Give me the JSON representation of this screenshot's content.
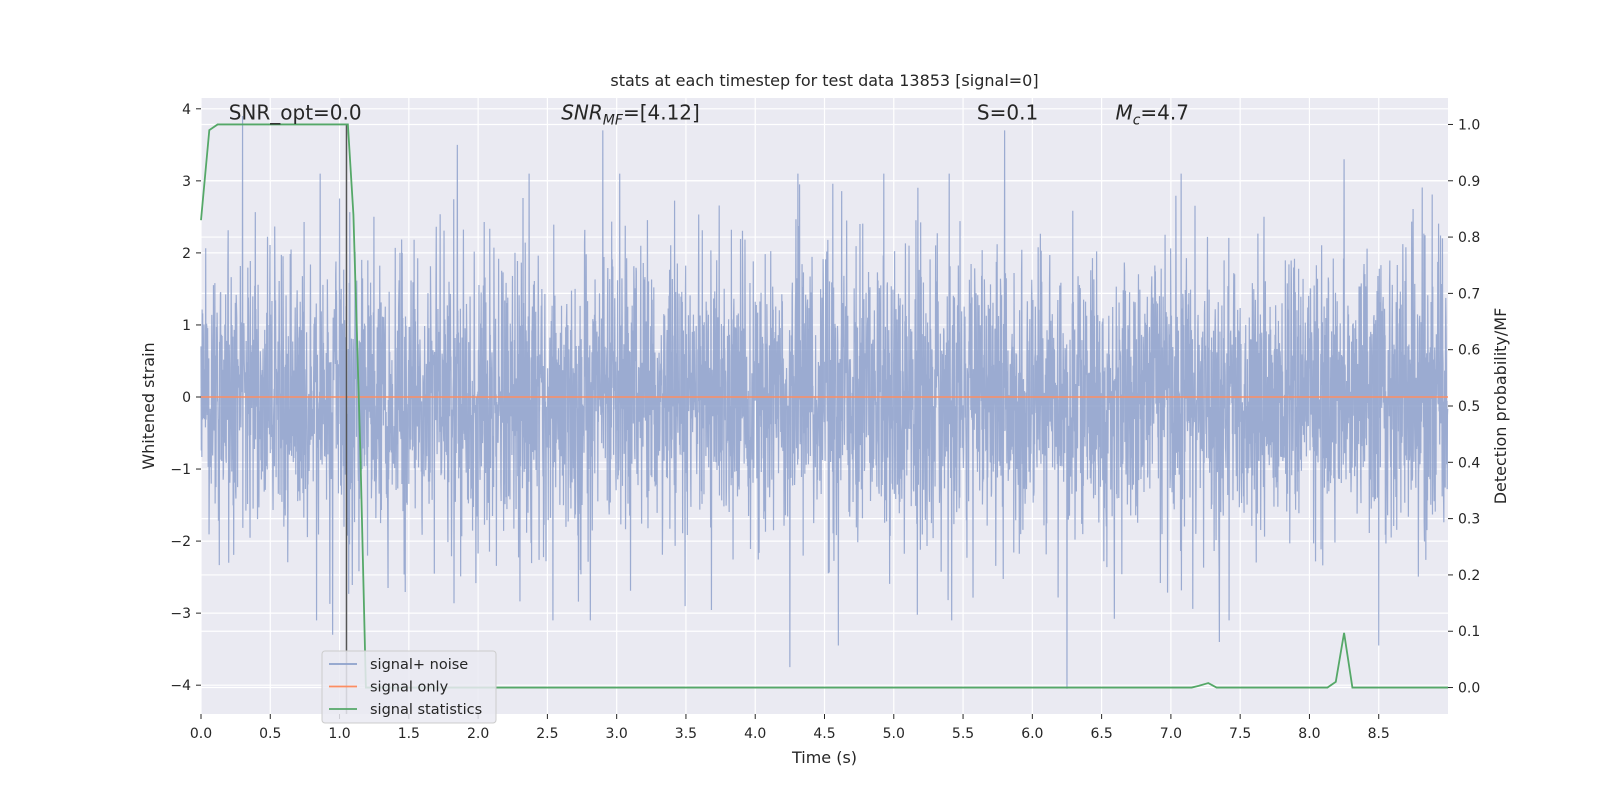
{
  "chart_data": {
    "type": "line",
    "title": "stats at each timestep for test data 13853 [signal=0]",
    "xlabel": "Time (s)",
    "ylabel": "Whitened strain",
    "ylabel_right": "Detection probability/MF",
    "xlim": [
      0.0,
      9.0
    ],
    "ylim": [
      -4.4,
      4.15
    ],
    "ylim_right": [
      -0.047,
      1.047
    ],
    "x_ticks": [
      0.0,
      0.5,
      1.0,
      1.5,
      2.0,
      2.5,
      3.0,
      3.5,
      4.0,
      4.5,
      5.0,
      5.5,
      6.0,
      6.5,
      7.0,
      7.5,
      8.0,
      8.5
    ],
    "x_tick_labels": [
      "0.0",
      "0.5",
      "1.0",
      "1.5",
      "2.0",
      "2.5",
      "3.0",
      "3.5",
      "4.0",
      "4.5",
      "5.0",
      "5.5",
      "6.0",
      "6.5",
      "7.0",
      "7.5",
      "8.0",
      "8.5"
    ],
    "y_ticks": [
      -4,
      -3,
      -2,
      -1,
      0,
      1,
      2,
      3,
      4
    ],
    "y_tick_labels": [
      "−4",
      "−3",
      "−2",
      "−1",
      "0",
      "1",
      "2",
      "3",
      "4"
    ],
    "y_ticks_right": [
      0.0,
      0.1,
      0.2,
      0.3,
      0.4,
      0.5,
      0.6,
      0.7,
      0.8,
      0.9,
      1.0
    ],
    "y_tick_labels_right": [
      "0.0",
      "0.1",
      "0.2",
      "0.3",
      "0.4",
      "0.5",
      "0.6",
      "0.7",
      "0.8",
      "0.9",
      "1.0"
    ],
    "grid": true,
    "legend_position": "lower-left",
    "annotations": [
      {
        "text": "SNR_opt=0.0",
        "x": 0.2,
        "y": 3.85
      },
      {
        "text": "SNR_MF=[4.12]",
        "x": 2.6,
        "y": 3.85
      },
      {
        "text": "S=0.1",
        "x": 5.6,
        "y": 3.85
      },
      {
        "text": "M_c=4.7",
        "x": 6.6,
        "y": 3.85
      }
    ],
    "vline": {
      "x": 1.05,
      "color": "#555555"
    },
    "series": [
      {
        "name": "signal+ noise",
        "color": "#8da0cb",
        "axis": "left",
        "kind": "noise",
        "duration": 9.0,
        "samples": 4500,
        "peaks_up": [
          [
            0.3,
            3.9
          ],
          [
            0.95,
            3.7
          ],
          [
            1.85,
            3.5
          ],
          [
            2.9,
            3.7
          ],
          [
            5.8,
            3.7
          ],
          [
            8.25,
            3.3
          ]
        ],
        "peaks_down": [
          [
            0.95,
            -3.3
          ],
          [
            4.25,
            -3.75
          ],
          [
            4.6,
            -3.45
          ],
          [
            6.25,
            -4.05
          ],
          [
            7.35,
            -3.4
          ],
          [
            8.5,
            -3.45
          ]
        ]
      },
      {
        "name": "signal only",
        "color": "#fc8d62",
        "axis": "left",
        "x": [
          0.0,
          9.0
        ],
        "values": [
          0.0,
          0.0
        ]
      },
      {
        "name": "signal statistics",
        "color": "#55a868",
        "axis": "right",
        "x": [
          0.0,
          0.06,
          0.12,
          0.5,
          1.0,
          1.06,
          1.1,
          1.15,
          1.19,
          1.25,
          7.15,
          7.2,
          7.27,
          7.33,
          8.13,
          8.19,
          8.25,
          8.31,
          9.0
        ],
        "values": [
          0.83,
          0.99,
          1.0,
          1.0,
          1.0,
          1.0,
          0.84,
          0.42,
          0.0,
          0.0,
          0.0,
          0.003,
          0.008,
          0.0,
          0.0,
          0.01,
          0.097,
          0.0,
          0.0
        ]
      }
    ]
  }
}
